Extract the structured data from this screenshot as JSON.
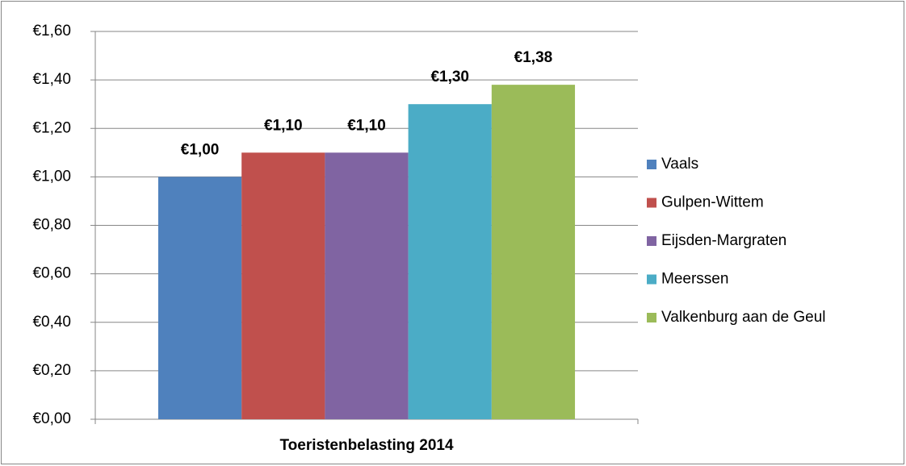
{
  "chart_data": {
    "type": "bar",
    "categories": [
      "Toeristenbelasting 2014"
    ],
    "series": [
      {
        "name": "Vaals",
        "color": "#4f81bd",
        "values": [
          1.0
        ],
        "value_labels": [
          "€1,00"
        ]
      },
      {
        "name": "Gulpen-Wittem",
        "color": "#c0504d",
        "values": [
          1.1
        ],
        "value_labels": [
          "€1,10"
        ]
      },
      {
        "name": "Eijsden-Margraten",
        "color": "#8064a2",
        "values": [
          1.1
        ],
        "value_labels": [
          "€1,10"
        ]
      },
      {
        "name": "Meerssen",
        "color": "#4bacc6",
        "values": [
          1.3
        ],
        "value_labels": [
          "€1,30"
        ]
      },
      {
        "name": "Valkenburg aan de Geul",
        "color": "#9bbb59",
        "values": [
          1.38
        ],
        "value_labels": [
          "€1,38"
        ]
      }
    ],
    "ylim": [
      0,
      1.6
    ],
    "yticks": [
      {
        "value": 0,
        "label": "€0,00"
      },
      {
        "value": 0.2,
        "label": "€0,20"
      },
      {
        "value": 0.4,
        "label": "€0,40"
      },
      {
        "value": 0.6,
        "label": "€0,60"
      },
      {
        "value": 0.8,
        "label": "€0,80"
      },
      {
        "value": 1.0,
        "label": "€1,00"
      },
      {
        "value": 1.2,
        "label": "€1,20"
      },
      {
        "value": 1.4,
        "label": "€1,40"
      },
      {
        "value": 1.6,
        "label": "€1,60"
      }
    ],
    "grid": true,
    "legend": "right"
  }
}
